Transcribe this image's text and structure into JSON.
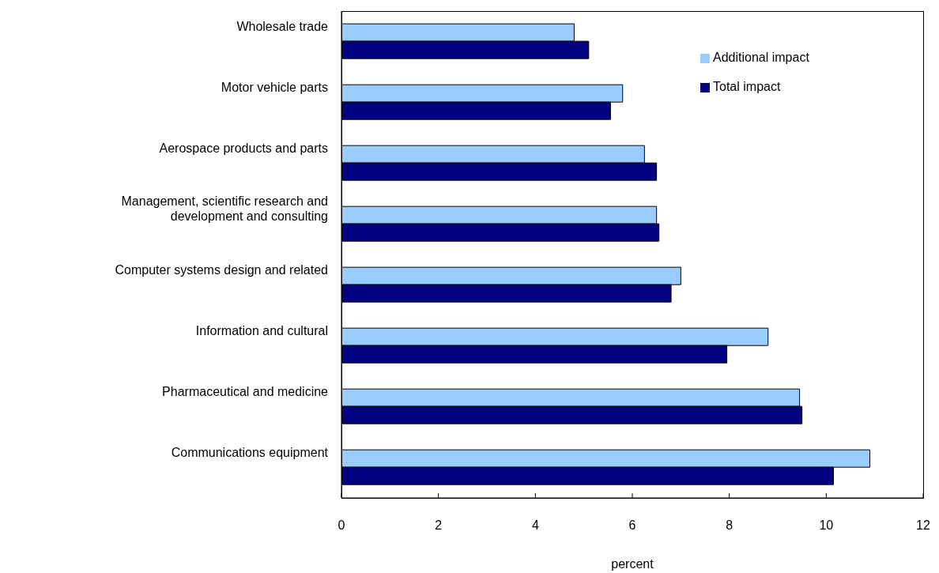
{
  "chart_data": {
    "type": "bar",
    "orientation": "horizontal",
    "categories": [
      "Wholesale trade",
      "Motor vehicle parts",
      "Aerospace products and parts",
      "Management, scientific research and development and consulting",
      "Computer systems design and related",
      "Information and cultural",
      "Pharmaceutical and medicine",
      "Communications equipment"
    ],
    "series": [
      {
        "name": "Additional impact",
        "color": "#99ccff",
        "values": [
          4.8,
          5.8,
          6.25,
          6.5,
          7.0,
          8.8,
          9.45,
          10.9
        ]
      },
      {
        "name": "Total impact",
        "color": "#000080",
        "values": [
          5.1,
          5.55,
          6.5,
          6.55,
          6.8,
          7.95,
          9.5,
          10.15
        ]
      }
    ],
    "xlabel": "percent",
    "xlim": [
      0,
      12
    ],
    "xticks": [
      0,
      2,
      4,
      6,
      8,
      10,
      12
    ],
    "legend": "top right"
  }
}
